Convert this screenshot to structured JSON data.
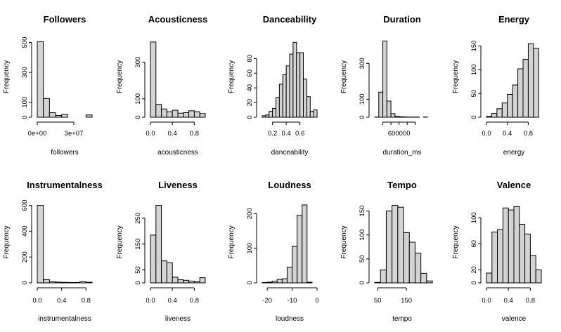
{
  "chart_data": [
    {
      "type": "bar",
      "title": "Followers",
      "xlabel": "followers",
      "ylabel": "Frequency",
      "xlim": [
        0,
        45000000
      ],
      "bin_edges": [
        0,
        5000000,
        10000000,
        15000000,
        20000000,
        25000000,
        30000000,
        35000000,
        40000000,
        45000000
      ],
      "values": [
        505,
        125,
        30,
        12,
        18,
        0,
        0,
        0,
        15
      ],
      "ylim": [
        0,
        540
      ],
      "x_ticks": [
        {
          "value": 0,
          "label": "0e+00"
        },
        {
          "value": 30000000,
          "label": "3e+07"
        }
      ],
      "y_ticks": [
        {
          "value": 0,
          "label": "0"
        },
        {
          "value": 100,
          "label": "100"
        },
        {
          "value": 300,
          "label": "300"
        },
        {
          "value": 500,
          "label": "500"
        }
      ]
    },
    {
      "type": "bar",
      "title": "Acousticness",
      "xlabel": "acousticness",
      "ylabel": "Frequency",
      "xlim": [
        0,
        1
      ],
      "bin_edges": [
        0,
        0.1,
        0.2,
        0.3,
        0.4,
        0.5,
        0.6,
        0.7,
        0.8,
        0.9,
        1.0
      ],
      "values": [
        410,
        70,
        45,
        30,
        38,
        22,
        25,
        35,
        30,
        20
      ],
      "ylim": [
        0,
        440
      ],
      "x_ticks": [
        {
          "value": 0,
          "label": "0.0"
        },
        {
          "value": 0.4,
          "label": "0.4"
        },
        {
          "value": 0.8,
          "label": "0.8"
        }
      ],
      "y_ticks": [
        {
          "value": 0,
          "label": "0"
        },
        {
          "value": 100,
          "label": "100"
        },
        {
          "value": 300,
          "label": "300"
        }
      ]
    },
    {
      "type": "bar",
      "title": "Danceability",
      "xlabel": "danceability",
      "ylabel": "Frequency",
      "xlim": [
        0.05,
        0.85
      ],
      "bin_edges": [
        0.05,
        0.1,
        0.15,
        0.2,
        0.25,
        0.3,
        0.35,
        0.4,
        0.45,
        0.5,
        0.55,
        0.6,
        0.65,
        0.7,
        0.75,
        0.8,
        0.85
      ],
      "values": [
        2,
        3,
        8,
        12,
        27,
        45,
        58,
        70,
        86,
        102,
        88,
        88,
        52,
        28,
        8,
        10
      ],
      "ylim": [
        0,
        110
      ],
      "x_ticks": [
        {
          "value": 0.2,
          "label": "0.2"
        },
        {
          "value": 0.4,
          "label": "0.4"
        },
        {
          "value": 0.6,
          "label": "0.6"
        }
      ],
      "y_ticks": [
        {
          "value": 0,
          "label": "0"
        },
        {
          "value": 20,
          "label": "20"
        },
        {
          "value": 40,
          "label": "40"
        },
        {
          "value": 60,
          "label": "60"
        },
        {
          "value": 80,
          "label": "80"
        }
      ]
    },
    {
      "type": "bar",
      "title": "Duration",
      "xlabel": "duration_ms",
      "ylabel": "Frequency",
      "xlim": [
        0,
        1350000
      ],
      "bin_edges": [
        0,
        100000,
        200000,
        300000,
        400000,
        500000,
        600000,
        700000,
        800000,
        900000,
        1000000,
        1100000,
        1200000,
        1300000
      ],
      "values": [
        1,
        140,
        425,
        90,
        20,
        6,
        3,
        2,
        1,
        1,
        1,
        0,
        1
      ],
      "ylim": [
        0,
        450
      ],
      "x_ticks": [
        {
          "value": 200000,
          "label": ""
        },
        {
          "value": 400000,
          "label": ""
        },
        {
          "value": 600000,
          "label": "600000"
        },
        {
          "value": 800000,
          "label": ""
        },
        {
          "value": 1000000,
          "label": ""
        }
      ],
      "y_ticks": [
        {
          "value": 0,
          "label": "0"
        },
        {
          "value": 100,
          "label": "100"
        },
        {
          "value": 300,
          "label": "300"
        }
      ]
    },
    {
      "type": "bar",
      "title": "Energy",
      "xlabel": "energy",
      "ylabel": "Frequency",
      "xlim": [
        0,
        1.05
      ],
      "bin_edges": [
        0,
        0.1,
        0.2,
        0.3,
        0.4,
        0.5,
        0.6,
        0.7,
        0.8,
        0.9,
        1.0
      ],
      "values": [
        2,
        8,
        18,
        30,
        48,
        68,
        102,
        122,
        155,
        145
      ],
      "ylim": [
        0,
        170
      ],
      "x_ticks": [
        {
          "value": 0,
          "label": "0.0"
        },
        {
          "value": 0.4,
          "label": "0.4"
        },
        {
          "value": 0.8,
          "label": "0.8"
        }
      ],
      "y_ticks": [
        {
          "value": 0,
          "label": "0"
        },
        {
          "value": 50,
          "label": "50"
        },
        {
          "value": 100,
          "label": "100"
        },
        {
          "value": 150,
          "label": "150"
        }
      ]
    },
    {
      "type": "bar",
      "title": "Instrumentalness",
      "xlabel": "instrumentalness",
      "ylabel": "Frequency",
      "xlim": [
        0,
        0.9
      ],
      "bin_edges": [
        0,
        0.1,
        0.2,
        0.3,
        0.4,
        0.5,
        0.6,
        0.7,
        0.8,
        0.9
      ],
      "values": [
        600,
        25,
        8,
        6,
        4,
        3,
        3,
        10,
        5
      ],
      "ylim": [
        0,
        630
      ],
      "x_ticks": [
        {
          "value": 0,
          "label": "0.0"
        },
        {
          "value": 0.4,
          "label": "0.4"
        },
        {
          "value": 0.8,
          "label": "0.8"
        }
      ],
      "y_ticks": [
        {
          "value": 0,
          "label": "0"
        },
        {
          "value": 200,
          "label": "200"
        },
        {
          "value": 400,
          "label": "400"
        },
        {
          "value": 600,
          "label": "600"
        }
      ]
    },
    {
      "type": "bar",
      "title": "Liveness",
      "xlabel": "liveness",
      "ylabel": "Frequency",
      "xlim": [
        0,
        1
      ],
      "bin_edges": [
        0,
        0.1,
        0.2,
        0.3,
        0.4,
        0.5,
        0.6,
        0.7,
        0.8,
        0.9,
        1.0
      ],
      "values": [
        185,
        300,
        85,
        78,
        22,
        12,
        10,
        7,
        4,
        20
      ],
      "ylim": [
        0,
        315
      ],
      "x_ticks": [
        {
          "value": 0,
          "label": "0.0"
        },
        {
          "value": 0.4,
          "label": "0.4"
        },
        {
          "value": 0.8,
          "label": "0.8"
        }
      ],
      "y_ticks": [
        {
          "value": 0,
          "label": "0"
        },
        {
          "value": 50,
          "label": "50"
        },
        {
          "value": 150,
          "label": "150"
        },
        {
          "value": 250,
          "label": "250"
        }
      ]
    },
    {
      "type": "bar",
      "title": "Loudness",
      "xlabel": "loudness",
      "ylabel": "Frequency",
      "xlim": [
        -22,
        0
      ],
      "bin_edges": [
        -22,
        -20,
        -18,
        -16,
        -14,
        -12,
        -10,
        -8,
        -6,
        -4,
        -2,
        0
      ],
      "values": [
        1,
        2,
        5,
        10,
        12,
        45,
        105,
        195,
        225,
        2,
        0
      ],
      "ylim": [
        0,
        235
      ],
      "x_ticks": [
        {
          "value": -20,
          "label": "-20"
        },
        {
          "value": -10,
          "label": "-10"
        },
        {
          "value": 0,
          "label": "0"
        }
      ],
      "y_ticks": [
        {
          "value": 0,
          "label": "0"
        },
        {
          "value": 100,
          "label": "100"
        },
        {
          "value": 200,
          "label": "200"
        }
      ]
    },
    {
      "type": "bar",
      "title": "Tempo",
      "xlabel": "tempo",
      "ylabel": "Frequency",
      "xlim": [
        40,
        230
      ],
      "bin_edges": [
        40,
        60,
        80,
        100,
        120,
        140,
        160,
        180,
        200,
        220,
        240
      ],
      "values": [
        1,
        27,
        150,
        162,
        158,
        105,
        85,
        62,
        20,
        4
      ],
      "ylim": [
        0,
        170
      ],
      "x_ticks": [
        {
          "value": 50,
          "label": "50"
        },
        {
          "value": 150,
          "label": "150"
        }
      ],
      "y_ticks": [
        {
          "value": 0,
          "label": "0"
        },
        {
          "value": 50,
          "label": "50"
        },
        {
          "value": 100,
          "label": "100"
        },
        {
          "value": 150,
          "label": "150"
        }
      ]
    },
    {
      "type": "bar",
      "title": "Valence",
      "xlabel": "valence",
      "ylabel": "Frequency",
      "xlim": [
        0,
        1
      ],
      "bin_edges": [
        0,
        0.1,
        0.2,
        0.3,
        0.4,
        0.5,
        0.6,
        0.7,
        0.8,
        0.9,
        1.0
      ],
      "values": [
        15,
        78,
        82,
        115,
        112,
        117,
        90,
        75,
        42,
        20
      ],
      "ylim": [
        0,
        125
      ],
      "x_ticks": [
        {
          "value": 0,
          "label": "0.0"
        },
        {
          "value": 0.4,
          "label": "0.4"
        },
        {
          "value": 0.8,
          "label": "0.8"
        }
      ],
      "y_ticks": [
        {
          "value": 0,
          "label": "0"
        },
        {
          "value": 20,
          "label": "20"
        },
        {
          "value": 60,
          "label": "60"
        },
        {
          "value": 100,
          "label": "100"
        }
      ]
    }
  ]
}
